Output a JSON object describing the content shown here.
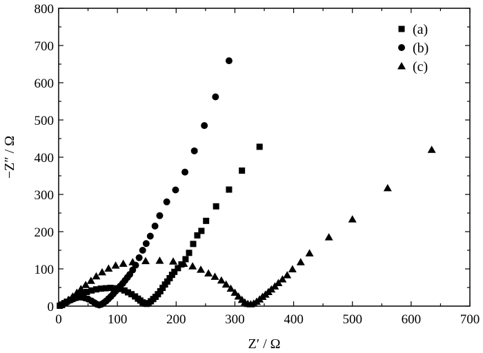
{
  "chart_data": {
    "type": "scatter",
    "title": "",
    "xlabel": "Z′ / Ω",
    "ylabel": "−Z″ / Ω",
    "xlim": [
      0,
      700
    ],
    "ylim": [
      0,
      800
    ],
    "xticks": [
      0,
      100,
      200,
      300,
      400,
      500,
      600,
      700
    ],
    "yticks": [
      0,
      100,
      200,
      300,
      400,
      500,
      600,
      700,
      800
    ],
    "grid": false,
    "legend": "top-right",
    "series": [
      {
        "name": "(a)",
        "marker": "square",
        "points": [
          [
            2,
            1
          ],
          [
            6,
            4
          ],
          [
            10,
            8
          ],
          [
            14,
            12
          ],
          [
            20,
            17
          ],
          [
            26,
            22
          ],
          [
            33,
            27
          ],
          [
            40,
            33
          ],
          [
            48,
            38
          ],
          [
            56,
            42
          ],
          [
            64,
            45
          ],
          [
            72,
            47
          ],
          [
            80,
            48
          ],
          [
            88,
            49
          ],
          [
            96,
            48
          ],
          [
            104,
            46
          ],
          [
            112,
            42
          ],
          [
            118,
            37
          ],
          [
            124,
            32
          ],
          [
            130,
            26
          ],
          [
            135,
            20
          ],
          [
            139,
            15
          ],
          [
            143,
            10
          ],
          [
            146,
            7
          ],
          [
            150,
            6
          ],
          [
            153,
            8
          ],
          [
            157,
            13
          ],
          [
            161,
            19
          ],
          [
            165,
            25
          ],
          [
            169,
            32
          ],
          [
            173,
            40
          ],
          [
            177,
            49
          ],
          [
            181,
            58
          ],
          [
            185,
            66
          ],
          [
            189,
            75
          ],
          [
            193,
            84
          ],
          [
            197,
            92
          ],
          [
            203,
            102
          ],
          [
            209,
            112
          ],
          [
            216,
            126
          ],
          [
            222,
            143
          ],
          [
            229,
            167
          ],
          [
            236,
            190
          ],
          [
            243,
            202
          ],
          [
            251,
            229
          ],
          [
            268,
            268
          ],
          [
            290,
            313
          ],
          [
            312,
            364
          ],
          [
            342,
            428
          ]
        ]
      },
      {
        "name": "(b)",
        "marker": "circle",
        "points": [
          [
            3,
            2
          ],
          [
            8,
            6
          ],
          [
            14,
            11
          ],
          [
            20,
            16
          ],
          [
            26,
            20
          ],
          [
            32,
            23
          ],
          [
            38,
            24
          ],
          [
            44,
            22
          ],
          [
            50,
            19
          ],
          [
            56,
            14
          ],
          [
            61,
            9
          ],
          [
            65,
            5
          ],
          [
            69,
            3
          ],
          [
            73,
            5
          ],
          [
            77,
            9
          ],
          [
            81,
            14
          ],
          [
            85,
            20
          ],
          [
            89,
            26
          ],
          [
            93,
            33
          ],
          [
            97,
            40
          ],
          [
            101,
            47
          ],
          [
            105,
            54
          ],
          [
            109,
            61
          ],
          [
            113,
            69
          ],
          [
            117,
            77
          ],
          [
            121,
            85
          ],
          [
            126,
            97
          ],
          [
            131,
            110
          ],
          [
            137,
            130
          ],
          [
            143,
            150
          ],
          [
            149,
            168
          ],
          [
            156,
            188
          ],
          [
            164,
            215
          ],
          [
            172,
            243
          ],
          [
            184,
            280
          ],
          [
            199,
            312
          ],
          [
            215,
            360
          ],
          [
            231,
            417
          ],
          [
            248,
            485
          ],
          [
            267,
            562
          ],
          [
            290,
            659
          ]
        ]
      },
      {
        "name": "(c)",
        "marker": "triangle",
        "points": [
          [
            4,
            3
          ],
          [
            10,
            9
          ],
          [
            17,
            17
          ],
          [
            24,
            26
          ],
          [
            31,
            36
          ],
          [
            38,
            46
          ],
          [
            46,
            57
          ],
          [
            55,
            68
          ],
          [
            64,
            80
          ],
          [
            74,
            91
          ],
          [
            85,
            101
          ],
          [
            97,
            109
          ],
          [
            110,
            114
          ],
          [
            126,
            118
          ],
          [
            148,
            121
          ],
          [
            172,
            122
          ],
          [
            195,
            120
          ],
          [
            213,
            114
          ],
          [
            228,
            107
          ],
          [
            242,
            98
          ],
          [
            255,
            88
          ],
          [
            266,
            79
          ],
          [
            277,
            69
          ],
          [
            285,
            58
          ],
          [
            293,
            47
          ],
          [
            300,
            36
          ],
          [
            306,
            26
          ],
          [
            312,
            17
          ],
          [
            317,
            10
          ],
          [
            322,
            6
          ],
          [
            327,
            5
          ],
          [
            332,
            7
          ],
          [
            337,
            12
          ],
          [
            342,
            18
          ],
          [
            347,
            25
          ],
          [
            352,
            31
          ],
          [
            357,
            38
          ],
          [
            362,
            45
          ],
          [
            368,
            53
          ],
          [
            374,
            62
          ],
          [
            381,
            72
          ],
          [
            389,
            83
          ],
          [
            398,
            99
          ],
          [
            412,
            118
          ],
          [
            427,
            142
          ],
          [
            460,
            185
          ],
          [
            500,
            233
          ],
          [
            560,
            317
          ],
          [
            635,
            420
          ]
        ]
      }
    ]
  }
}
